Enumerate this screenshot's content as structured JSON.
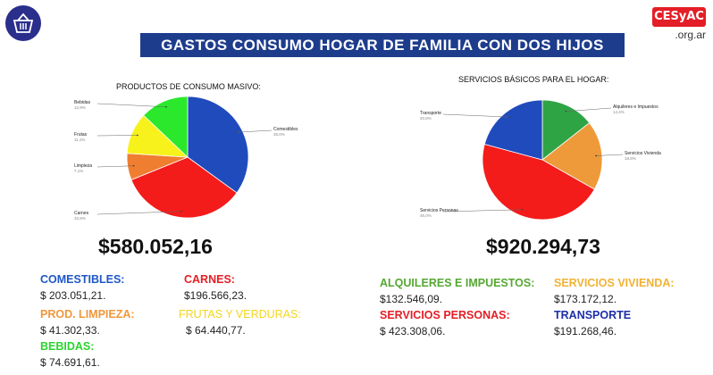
{
  "header": {
    "title": "GASTOS CONSUMO HOGAR DE FAMILIA CON DOS HIJOS",
    "brand": "CESyAC",
    "brand_domain": ".org.ar"
  },
  "chart_data": [
    {
      "type": "pie",
      "title": "PRODUCTOS DE CONSUMO MASIVO:",
      "slices": [
        {
          "label": "Comestibles",
          "pct": "35,0%",
          "value": 35.0,
          "color": "#1f4bbd"
        },
        {
          "label": "Carnes",
          "pct": "33,9%",
          "value": 33.9,
          "color": "#f41b1b"
        },
        {
          "label": "Limpieza",
          "pct": "7,1%",
          "value": 7.1,
          "color": "#f07e31"
        },
        {
          "label": "Frutas",
          "pct": "11,1%",
          "value": 11.1,
          "color": "#f8f21c"
        },
        {
          "label": "Bebidas",
          "pct": "12,9%",
          "value": 12.9,
          "color": "#2be82d"
        }
      ],
      "total": "$580.052,16"
    },
    {
      "type": "pie",
      "title": "SERVICIOS BÁSICOS PARA EL HOGAR:",
      "slices": [
        {
          "label": "Alquileres e Impuestos",
          "pct": "14,4%",
          "value": 14.4,
          "color": "#2fa445"
        },
        {
          "label": "Servicios Vivienda",
          "pct": "18,8%",
          "value": 18.8,
          "color": "#ee9a3a"
        },
        {
          "label": "Servicios Personas",
          "pct": "46,0%",
          "value": 46.0,
          "color": "#f41b1b"
        },
        {
          "label": "Transporte",
          "pct": "20,8%",
          "value": 20.8,
          "color": "#1f4bbd"
        }
      ],
      "total": "$920.294,73"
    }
  ],
  "legend_items": [
    {
      "name": "COMESTIBLES:",
      "value": "$ 203.051,21.",
      "color": "#1f57c9"
    },
    {
      "name": "CARNES:",
      "value": "$196.566,23.",
      "color": "#e41e26"
    },
    {
      "name": "PROD. LIMPIEZA:",
      "value": "$ 41.302,33.",
      "color": "#f0973b"
    },
    {
      "name": "FRUTAS Y VERDURAS:",
      "value": "$ 64.440,77.",
      "color": "#f4d61c"
    },
    {
      "name": "BEBIDAS:",
      "value": "$ 74.691,61.",
      "color": "#2bd42f"
    },
    {
      "name": "ALQUILERES E IMPUESTOS:",
      "value": "$132.546,09.",
      "color": "#55a832"
    },
    {
      "name": "SERVICIOS VIVIENDA:",
      "value": "$173.172,12.",
      "color": "#f2b233"
    },
    {
      "name": "SERVICIOS PERSONAS:",
      "value": "$ 423.308,06.",
      "color": "#e41e26"
    },
    {
      "name": "TRANSPORTE",
      "value": "$191.268,46.",
      "color": "#1d2fa8"
    }
  ]
}
